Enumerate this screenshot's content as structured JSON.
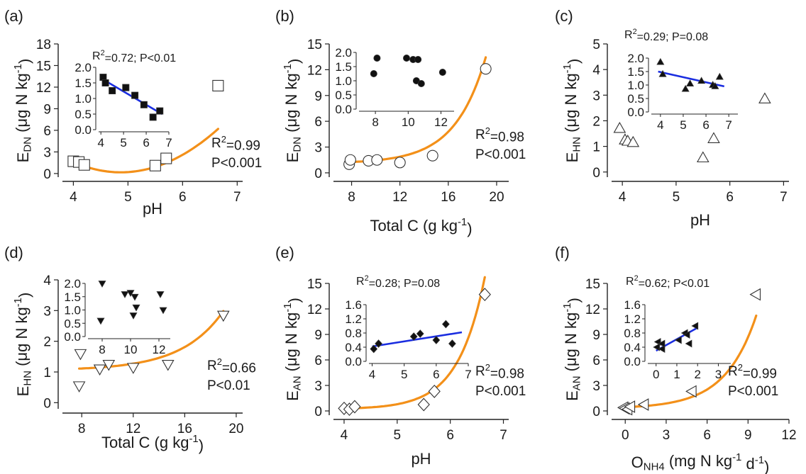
{
  "chart_data": [
    {
      "id": "a",
      "type": "scatter",
      "panel_label": "(a)",
      "xlabel": "pH",
      "ylabel": {
        "base": "E",
        "sub": "DN",
        "rest": " (μg N kg",
        "sup": "-1",
        "end": ")"
      },
      "xlim": [
        3.8,
        7.1
      ],
      "ylim": [
        -0.5,
        18
      ],
      "xticks": [
        4,
        5,
        6,
        7
      ],
      "yticks": [
        0,
        3,
        6,
        9,
        12,
        15,
        18
      ],
      "marker": "square",
      "points": [
        [
          4.0,
          1.7
        ],
        [
          4.1,
          1.6
        ],
        [
          4.2,
          1.2
        ],
        [
          5.5,
          1.1
        ],
        [
          5.7,
          2.1
        ],
        [
          6.65,
          12.2
        ]
      ],
      "fit": {
        "kind": "poly",
        "coef": [
          45.2,
          -18.5,
          1.9
        ],
        "x_range": [
          4.0,
          6.65
        ],
        "r2": "0.99",
        "p": "P<0.001",
        "color": "#f39019"
      },
      "stats": {
        "r2": "0.99",
        "p": "P<0.001"
      },
      "inset": {
        "stat": "R²=0.72; P<0.01",
        "xlim": [
          3.9,
          7.0
        ],
        "ylim": [
          0,
          2.0
        ],
        "xticks": [
          4,
          5,
          6,
          7
        ],
        "yticks": [
          "0.0",
          "0.5",
          "1.0",
          "1.5",
          "2.0"
        ],
        "ytick_values": [
          0,
          0.5,
          1.0,
          1.5,
          2.0
        ],
        "marker": "square",
        "points": [
          [
            4.1,
            1.68
          ],
          [
            4.2,
            1.5
          ],
          [
            4.5,
            1.25
          ],
          [
            5.1,
            1.35
          ],
          [
            5.5,
            1.1
          ],
          [
            5.9,
            0.8
          ],
          [
            6.3,
            0.4
          ],
          [
            6.6,
            0.6
          ]
        ],
        "fit": {
          "x": [
            4.0,
            6.7
          ],
          "y": [
            1.65,
            0.5
          ],
          "color": "#1a2de0"
        }
      }
    },
    {
      "id": "b",
      "type": "scatter",
      "panel_label": "(b)",
      "xlabel": {
        "base": "Total C (g kg",
        "sup": "-1",
        "end": ")"
      },
      "ylabel": {
        "base": "E",
        "sub": "DN",
        "rest": " (μg N kg",
        "sup": "-1",
        "end": ")"
      },
      "xlim": [
        6.5,
        21
      ],
      "ylim": [
        -0.5,
        15
      ],
      "xticks": [
        8,
        12,
        16,
        20
      ],
      "yticks": [
        0,
        3,
        6,
        9,
        12,
        15
      ],
      "marker": "circle",
      "points": [
        [
          7.8,
          1.0
        ],
        [
          7.9,
          1.5
        ],
        [
          9.4,
          1.4
        ],
        [
          10.1,
          1.5
        ],
        [
          12.0,
          1.2
        ],
        [
          14.7,
          2.0
        ],
        [
          19.1,
          12.1
        ]
      ],
      "fit": {
        "kind": "exp",
        "a": 1.1,
        "b": 1.1,
        "k": 0.39,
        "x0": 12.9,
        "x_range": [
          7.8,
          19.1
        ],
        "color": "#f39019"
      },
      "stats": {
        "r2": "0.98",
        "p": "P<0.001"
      },
      "inset": {
        "stat": "",
        "xlim": [
          7.0,
          12.8
        ],
        "ylim": [
          0,
          2.0
        ],
        "xticks": [
          8,
          10,
          12
        ],
        "yticks": [
          "0.0",
          "0.5",
          "1.0",
          "1.5",
          "2.0"
        ],
        "ytick_values": [
          0,
          0.5,
          1.0,
          1.5,
          2.0
        ],
        "marker": "circle",
        "points": [
          [
            7.9,
            1.25
          ],
          [
            8.1,
            1.8
          ],
          [
            9.9,
            1.8
          ],
          [
            10.3,
            1.75
          ],
          [
            10.6,
            1.75
          ],
          [
            10.5,
            1.0
          ],
          [
            10.8,
            0.9
          ],
          [
            12.1,
            1.3
          ]
        ],
        "fit": null
      }
    },
    {
      "id": "c",
      "type": "scatter",
      "panel_label": "(c)",
      "xlabel": "pH",
      "ylabel": {
        "base": "E",
        "sub": "HN",
        "rest": " (μg N kg",
        "sup": "-1",
        "end": ")"
      },
      "xlim": [
        3.8,
        7.1
      ],
      "ylim": [
        -0.2,
        5
      ],
      "xticks": [
        4,
        5,
        6,
        7
      ],
      "yticks": [
        0,
        1,
        2,
        3,
        4,
        5
      ],
      "marker": "triangle-up",
      "points": [
        [
          3.95,
          1.7
        ],
        [
          4.05,
          1.25
        ],
        [
          4.1,
          1.2
        ],
        [
          4.2,
          1.15
        ],
        [
          5.5,
          0.55
        ],
        [
          5.7,
          1.3
        ],
        [
          6.65,
          2.85
        ]
      ],
      "fit": null,
      "stats": null,
      "inset": {
        "stat": "R²=0.29; P=0.08",
        "xlim": [
          3.6,
          7.4
        ],
        "ylim": [
          0,
          2.0
        ],
        "xticks": [
          4,
          5,
          6,
          7
        ],
        "yticks": [
          "0.0",
          "0.5",
          "1.0",
          "1.5",
          "2.0"
        ],
        "ytick_values": [
          0,
          0.5,
          1.0,
          1.5,
          2.0
        ],
        "marker": "triangle-up",
        "points": [
          [
            4.0,
            1.85
          ],
          [
            4.1,
            1.4
          ],
          [
            5.1,
            0.85
          ],
          [
            5.3,
            1.05
          ],
          [
            5.8,
            1.15
          ],
          [
            6.3,
            1.0
          ],
          [
            6.6,
            1.3
          ],
          [
            6.4,
            0.95
          ]
        ],
        "fit": {
          "x": [
            3.9,
            6.8
          ],
          "y": [
            1.5,
            0.95
          ],
          "color": "#1a2de0"
        }
      }
    },
    {
      "id": "d",
      "type": "scatter",
      "panel_label": "(d)",
      "xlabel": {
        "base": "Total C (g kg",
        "sup": "-1",
        "end": ")"
      },
      "ylabel": {
        "base": "E",
        "sub": "HN",
        "rest": " (μg N kg",
        "sup": "-1",
        "end": ")"
      },
      "xlim": [
        6.5,
        20.5
      ],
      "ylim": [
        -0.2,
        4
      ],
      "xticks": [
        8,
        12,
        16,
        20
      ],
      "yticks": [
        0,
        1,
        2,
        3,
        4
      ],
      "marker": "triangle-down",
      "points": [
        [
          7.8,
          0.55
        ],
        [
          7.9,
          1.6
        ],
        [
          9.4,
          1.1
        ],
        [
          10.1,
          1.25
        ],
        [
          12.0,
          1.15
        ],
        [
          14.7,
          1.25
        ],
        [
          19.0,
          2.85
        ]
      ],
      "fit": {
        "kind": "exp",
        "a": 1.05,
        "b": 0.06,
        "k": 0.31,
        "x0": 7.8,
        "x_range": [
          7.8,
          19.0
        ],
        "color": "#f39019"
      },
      "stats": {
        "r2": "0.66",
        "p": "P<0.01"
      },
      "inset": {
        "stat": "",
        "xlim": [
          7.0,
          12.8
        ],
        "ylim": [
          0,
          2.0
        ],
        "xticks": [
          8,
          10,
          12
        ],
        "yticks": [
          "0.0",
          "0.5",
          "1.0",
          "1.5",
          "2.0"
        ],
        "ytick_values": [
          0,
          0.5,
          1.0,
          1.5,
          2.0
        ],
        "marker": "triangle-down",
        "points": [
          [
            7.9,
            0.6
          ],
          [
            8.0,
            2.0
          ],
          [
            9.6,
            1.6
          ],
          [
            10.0,
            1.65
          ],
          [
            10.3,
            1.5
          ],
          [
            10.4,
            1.1
          ],
          [
            10.2,
            0.8
          ],
          [
            12.1,
            1.6
          ],
          [
            12.3,
            1.0
          ]
        ],
        "fit": null
      }
    },
    {
      "id": "e",
      "type": "scatter",
      "panel_label": "(e)",
      "xlabel": "pH",
      "ylabel": {
        "base": "E",
        "sub": "AN",
        "rest": " (μg N kg",
        "sup": "-1",
        "end": ")"
      },
      "xlim": [
        3.8,
        7.1
      ],
      "ylim": [
        -0.5,
        15
      ],
      "xticks": [
        4,
        5,
        6,
        7
      ],
      "yticks": [
        0,
        3,
        6,
        9,
        12,
        15
      ],
      "marker": "diamond",
      "points": [
        [
          4.0,
          0.3
        ],
        [
          4.1,
          0.2
        ],
        [
          4.2,
          0.5
        ],
        [
          5.5,
          0.75
        ],
        [
          5.7,
          2.3
        ],
        [
          6.65,
          13.7
        ]
      ],
      "fit": {
        "kind": "exp",
        "a": 0.2,
        "b": 0.22,
        "k": 1.98,
        "x0": 4.5,
        "x_range": [
          4.0,
          6.65
        ],
        "color": "#f39019"
      },
      "stats": {
        "r2": "0.98",
        "p": "P<0.001"
      },
      "inset": {
        "stat": "R²=0.28; P=0.08",
        "xlim": [
          3.9,
          7.0
        ],
        "ylim": [
          0,
          1.6
        ],
        "xticks": [
          4,
          5,
          6,
          7
        ],
        "yticks": [
          "0.0",
          "0.4",
          "0.8",
          "1.2",
          "1.6"
        ],
        "ytick_values": [
          0,
          0.4,
          0.8,
          1.2,
          1.6
        ],
        "marker": "diamond",
        "points": [
          [
            4.05,
            0.35
          ],
          [
            4.2,
            0.5
          ],
          [
            5.3,
            0.7
          ],
          [
            5.5,
            0.78
          ],
          [
            6.0,
            0.6
          ],
          [
            6.3,
            1.05
          ],
          [
            6.5,
            0.5
          ]
        ],
        "fit": {
          "x": [
            4.0,
            6.8
          ],
          "y": [
            0.42,
            0.82
          ],
          "color": "#1a2de0"
        }
      }
    },
    {
      "id": "f",
      "type": "scatter",
      "panel_label": "(f)",
      "xlabel": {
        "base": "O",
        "sub": "NH4",
        "rest": " (mg N kg",
        "sup": "-1",
        "mid": " d",
        "sup2": "-1",
        "end": ")"
      },
      "ylabel": {
        "base": "E",
        "sub": "AN",
        "rest": " (μg N kg",
        "sup": "-1",
        "end": ")"
      },
      "xlim": [
        -1,
        12
      ],
      "ylim": [
        -0.5,
        15
      ],
      "xticks": [
        0,
        3,
        6,
        9,
        12
      ],
      "yticks": [
        0,
        3,
        6,
        9,
        12,
        15
      ],
      "marker": "triangle-left",
      "points": [
        [
          -0.1,
          0.4
        ],
        [
          0.0,
          0.3
        ],
        [
          0.2,
          0.2
        ],
        [
          0.4,
          0.5
        ],
        [
          1.4,
          0.75
        ],
        [
          4.9,
          2.3
        ],
        [
          9.6,
          13.7
        ]
      ],
      "fit": {
        "kind": "exp",
        "a": 0.28,
        "b": 0.16,
        "k": 0.44,
        "x0": 0,
        "x_range": [
          0.0,
          9.6
        ],
        "color": "#f39019"
      },
      "stats": {
        "r2": "0.99",
        "p": "P<0.001"
      },
      "inset": {
        "stat": "R²=0.62; P<0.01",
        "xlim": [
          -0.4,
          3.6
        ],
        "ylim": [
          0,
          1.6
        ],
        "xticks": [
          0,
          1,
          2,
          3
        ],
        "yticks": [
          "0.0",
          "0.4",
          "0.8",
          "1.2",
          "1.6"
        ],
        "ytick_values": [
          0,
          0.4,
          0.8,
          1.2,
          1.6
        ],
        "marker": "triangle-left",
        "points": [
          [
            0.05,
            0.4
          ],
          [
            0.1,
            0.55
          ],
          [
            0.3,
            0.35
          ],
          [
            0.3,
            0.5
          ],
          [
            1.1,
            0.6
          ],
          [
            1.4,
            0.8
          ],
          [
            1.5,
            0.75
          ],
          [
            1.9,
            1.0
          ],
          [
            1.6,
            0.5
          ]
        ],
        "fit": {
          "x": [
            0.0,
            2.0
          ],
          "y": [
            0.3,
            0.95
          ],
          "color": "#1a2de0"
        }
      }
    }
  ]
}
